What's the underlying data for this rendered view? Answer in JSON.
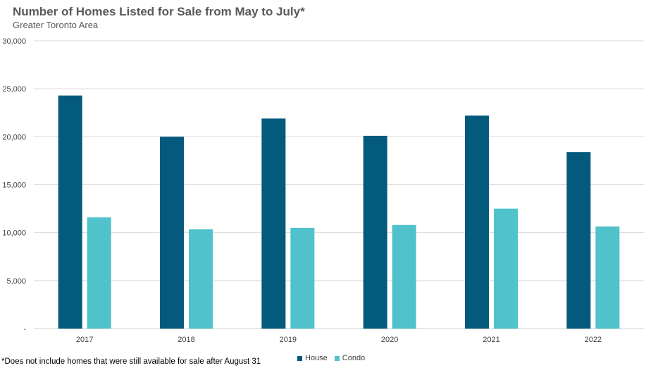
{
  "chart_data": {
    "type": "bar",
    "title": "Number of Homes Listed for Sale from May to July*",
    "subtitle": "Greater Toronto Area",
    "categories": [
      "2017",
      "2018",
      "2019",
      "2020",
      "2021",
      "2022"
    ],
    "series": [
      {
        "name": "House",
        "color": "#045a7d",
        "values": [
          24300,
          20000,
          21900,
          20100,
          22200,
          18400
        ]
      },
      {
        "name": "Condo",
        "color": "#4fc2cc",
        "values": [
          11600,
          10350,
          10500,
          10800,
          12500,
          10650
        ]
      }
    ],
    "ylim": [
      0,
      30000
    ],
    "yticks": [
      0,
      5000,
      10000,
      15000,
      20000,
      25000,
      30000
    ],
    "ytick_labels": [
      "-",
      "5,000",
      "10,000",
      "15,000",
      "20,000",
      "25,000",
      "30,000"
    ],
    "grid": true,
    "legend_position": "bottom",
    "footnote": "*Does not include homes that were still available for sale after August 31"
  }
}
